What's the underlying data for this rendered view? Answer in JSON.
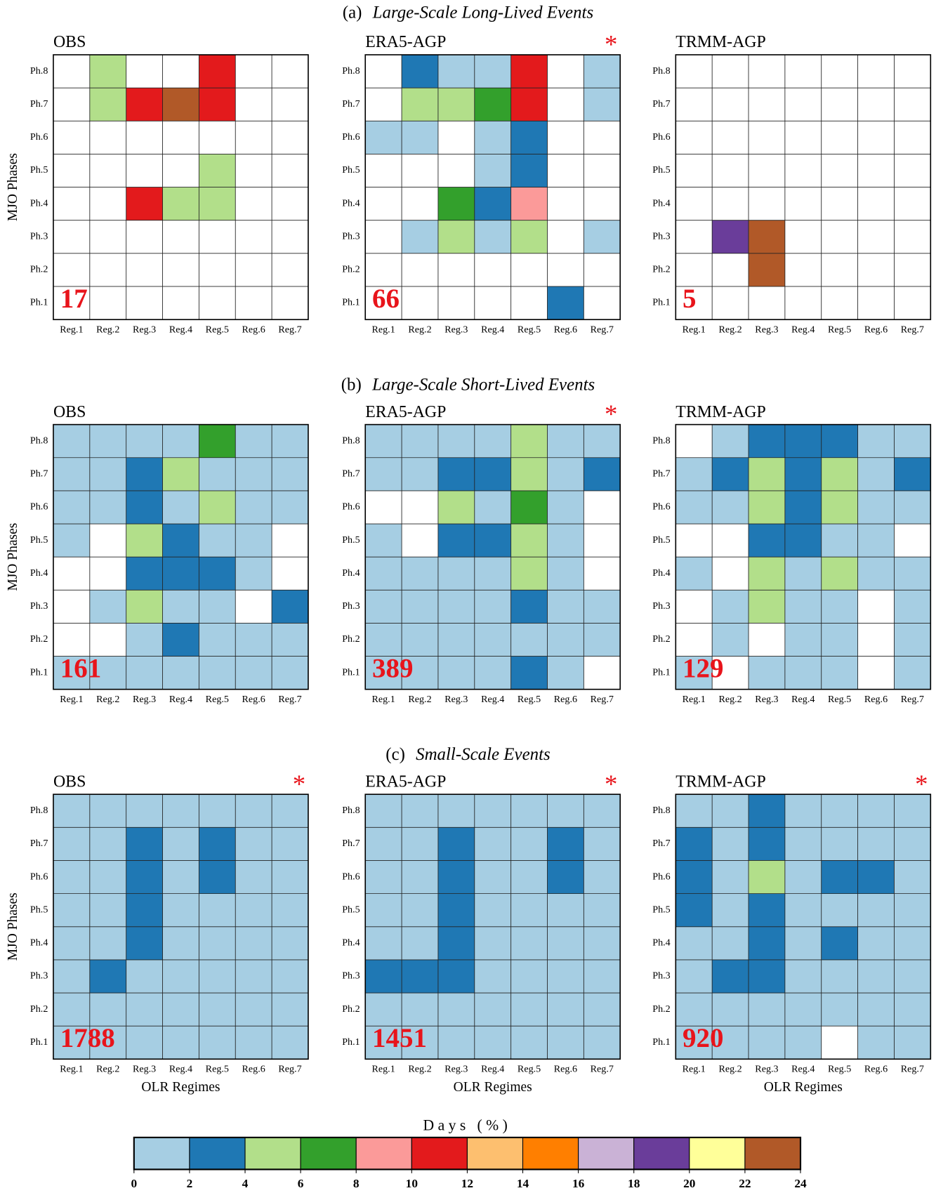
{
  "sections": [
    {
      "label": "(a)",
      "title": "Large-Scale Long-Lived Events"
    },
    {
      "label": "(b)",
      "title": "Large-Scale Short-Lived Events"
    },
    {
      "label": "(c)",
      "title": "Small-Scale Events"
    }
  ],
  "chart_data": [
    {
      "type": "heatmap",
      "title": "OBS",
      "annotation": "17",
      "ylabel": "MJO Phases",
      "x_categories": [
        "Reg.1",
        "Reg.2",
        "Reg.3",
        "Reg.4",
        "Reg.5",
        "Reg.6",
        "Reg.7"
      ],
      "y_categories": [
        "Ph.8",
        "Ph.7",
        "Ph.6",
        "Ph.5",
        "Ph.4",
        "Ph.3",
        "Ph.2",
        "Ph.1"
      ],
      "values": [
        [
          null,
          5,
          null,
          null,
          11,
          null,
          null
        ],
        [
          null,
          5,
          11,
          23,
          11,
          null,
          null
        ],
        [
          null,
          null,
          null,
          null,
          null,
          null,
          null
        ],
        [
          null,
          null,
          null,
          null,
          5,
          null,
          null
        ],
        [
          null,
          null,
          11,
          5,
          5,
          null,
          null
        ],
        [
          null,
          null,
          null,
          null,
          null,
          null,
          null
        ],
        [
          null,
          null,
          null,
          null,
          null,
          null,
          null
        ],
        [
          null,
          null,
          null,
          null,
          null,
          null,
          null
        ]
      ]
    },
    {
      "type": "heatmap",
      "title": "ERA5-AGP",
      "annotation": "66",
      "marker": "*",
      "x_categories": [
        "Reg.1",
        "Reg.2",
        "Reg.3",
        "Reg.4",
        "Reg.5",
        "Reg.6",
        "Reg.7"
      ],
      "y_categories": [
        "Ph.8",
        "Ph.7",
        "Ph.6",
        "Ph.5",
        "Ph.4",
        "Ph.3",
        "Ph.2",
        "Ph.1"
      ],
      "values": [
        [
          null,
          3,
          1,
          1,
          11,
          null,
          1
        ],
        [
          null,
          5,
          5,
          7,
          11,
          null,
          1
        ],
        [
          1,
          1,
          null,
          1,
          3,
          null,
          null
        ],
        [
          null,
          null,
          null,
          1,
          3,
          null,
          null
        ],
        [
          null,
          null,
          7,
          3,
          9,
          null,
          null
        ],
        [
          null,
          1,
          5,
          1,
          5,
          null,
          1
        ],
        [
          null,
          null,
          null,
          null,
          null,
          null,
          null
        ],
        [
          null,
          null,
          null,
          null,
          null,
          3,
          null
        ]
      ]
    },
    {
      "type": "heatmap",
      "title": "TRMM-AGP",
      "annotation": "5",
      "x_categories": [
        "Reg.1",
        "Reg.2",
        "Reg.3",
        "Reg.4",
        "Reg.5",
        "Reg.6",
        "Reg.7"
      ],
      "y_categories": [
        "Ph.8",
        "Ph.7",
        "Ph.6",
        "Ph.5",
        "Ph.4",
        "Ph.3",
        "Ph.2",
        "Ph.1"
      ],
      "values": [
        [
          null,
          null,
          null,
          null,
          null,
          null,
          null
        ],
        [
          null,
          null,
          null,
          null,
          null,
          null,
          null
        ],
        [
          null,
          null,
          null,
          null,
          null,
          null,
          null
        ],
        [
          null,
          null,
          null,
          null,
          null,
          null,
          null
        ],
        [
          null,
          null,
          null,
          null,
          null,
          null,
          null
        ],
        [
          null,
          19,
          23,
          null,
          null,
          null,
          null
        ],
        [
          null,
          null,
          23,
          null,
          null,
          null,
          null
        ],
        [
          null,
          null,
          null,
          null,
          null,
          null,
          null
        ]
      ]
    },
    {
      "type": "heatmap",
      "title": "OBS",
      "annotation": "161",
      "ylabel": "MJO Phases",
      "x_categories": [
        "Reg.1",
        "Reg.2",
        "Reg.3",
        "Reg.4",
        "Reg.5",
        "Reg.6",
        "Reg.7"
      ],
      "y_categories": [
        "Ph.8",
        "Ph.7",
        "Ph.6",
        "Ph.5",
        "Ph.4",
        "Ph.3",
        "Ph.2",
        "Ph.1"
      ],
      "values": [
        [
          1,
          1,
          1,
          1,
          7,
          1,
          1
        ],
        [
          1,
          1,
          3,
          5,
          1,
          1,
          1
        ],
        [
          1,
          1,
          3,
          1,
          5,
          1,
          1
        ],
        [
          1,
          null,
          5,
          3,
          1,
          1,
          null
        ],
        [
          null,
          null,
          3,
          3,
          3,
          1,
          null
        ],
        [
          null,
          1,
          5,
          1,
          1,
          null,
          3
        ],
        [
          null,
          null,
          1,
          3,
          1,
          1,
          1
        ],
        [
          1,
          1,
          1,
          1,
          1,
          1,
          1
        ]
      ]
    },
    {
      "type": "heatmap",
      "title": "ERA5-AGP",
      "annotation": "389",
      "marker": "*",
      "x_categories": [
        "Reg.1",
        "Reg.2",
        "Reg.3",
        "Reg.4",
        "Reg.5",
        "Reg.6",
        "Reg.7"
      ],
      "y_categories": [
        "Ph.8",
        "Ph.7",
        "Ph.6",
        "Ph.5",
        "Ph.4",
        "Ph.3",
        "Ph.2",
        "Ph.1"
      ],
      "values": [
        [
          1,
          1,
          1,
          1,
          5,
          1,
          1
        ],
        [
          1,
          1,
          3,
          3,
          5,
          1,
          3
        ],
        [
          null,
          null,
          5,
          1,
          7,
          1,
          null
        ],
        [
          1,
          null,
          3,
          3,
          5,
          1,
          null
        ],
        [
          1,
          1,
          1,
          1,
          5,
          1,
          null
        ],
        [
          1,
          1,
          1,
          1,
          3,
          1,
          1
        ],
        [
          1,
          1,
          1,
          1,
          1,
          1,
          1
        ],
        [
          1,
          1,
          1,
          1,
          3,
          1,
          null
        ]
      ]
    },
    {
      "type": "heatmap",
      "title": "TRMM-AGP",
      "annotation": "129",
      "x_categories": [
        "Reg.1",
        "Reg.2",
        "Reg.3",
        "Reg.4",
        "Reg.5",
        "Reg.6",
        "Reg.7"
      ],
      "y_categories": [
        "Ph.8",
        "Ph.7",
        "Ph.6",
        "Ph.5",
        "Ph.4",
        "Ph.3",
        "Ph.2",
        "Ph.1"
      ],
      "values": [
        [
          null,
          1,
          3,
          3,
          3,
          1,
          1
        ],
        [
          1,
          3,
          5,
          3,
          5,
          1,
          3
        ],
        [
          1,
          1,
          5,
          3,
          5,
          1,
          1
        ],
        [
          null,
          null,
          3,
          3,
          1,
          1,
          null
        ],
        [
          1,
          null,
          5,
          1,
          5,
          1,
          1
        ],
        [
          null,
          1,
          5,
          1,
          1,
          null,
          1
        ],
        [
          null,
          1,
          null,
          1,
          1,
          null,
          1
        ],
        [
          1,
          null,
          1,
          1,
          1,
          null,
          1
        ]
      ]
    },
    {
      "type": "heatmap",
      "title": "OBS",
      "annotation": "1788",
      "marker": "*",
      "ylabel": "MJO Phases",
      "xlabel": "OLR Regimes",
      "x_categories": [
        "Reg.1",
        "Reg.2",
        "Reg.3",
        "Reg.4",
        "Reg.5",
        "Reg.6",
        "Reg.7"
      ],
      "y_categories": [
        "Ph.8",
        "Ph.7",
        "Ph.6",
        "Ph.5",
        "Ph.4",
        "Ph.3",
        "Ph.2",
        "Ph.1"
      ],
      "values": [
        [
          1,
          1,
          1,
          1,
          1,
          1,
          1
        ],
        [
          1,
          1,
          3,
          1,
          3,
          1,
          1
        ],
        [
          1,
          1,
          3,
          1,
          3,
          1,
          1
        ],
        [
          1,
          1,
          3,
          1,
          1,
          1,
          1
        ],
        [
          1,
          1,
          3,
          1,
          1,
          1,
          1
        ],
        [
          1,
          3,
          1,
          1,
          1,
          1,
          1
        ],
        [
          1,
          1,
          1,
          1,
          1,
          1,
          1
        ],
        [
          1,
          1,
          1,
          1,
          1,
          1,
          1
        ]
      ]
    },
    {
      "type": "heatmap",
      "title": "ERA5-AGP",
      "annotation": "1451",
      "marker": "*",
      "xlabel": "OLR Regimes",
      "x_categories": [
        "Reg.1",
        "Reg.2",
        "Reg.3",
        "Reg.4",
        "Reg.5",
        "Reg.6",
        "Reg.7"
      ],
      "y_categories": [
        "Ph.8",
        "Ph.7",
        "Ph.6",
        "Ph.5",
        "Ph.4",
        "Ph.3",
        "Ph.2",
        "Ph.1"
      ],
      "values": [
        [
          1,
          1,
          1,
          1,
          1,
          1,
          1
        ],
        [
          1,
          1,
          3,
          1,
          1,
          3,
          1
        ],
        [
          1,
          1,
          3,
          1,
          1,
          3,
          1
        ],
        [
          1,
          1,
          3,
          1,
          1,
          1,
          1
        ],
        [
          1,
          1,
          3,
          1,
          1,
          1,
          1
        ],
        [
          3,
          3,
          3,
          1,
          1,
          1,
          1
        ],
        [
          1,
          1,
          1,
          1,
          1,
          1,
          1
        ],
        [
          1,
          1,
          1,
          1,
          1,
          1,
          1
        ]
      ]
    },
    {
      "type": "heatmap",
      "title": "TRMM-AGP",
      "annotation": "920",
      "marker": "*",
      "xlabel": "OLR Regimes",
      "x_categories": [
        "Reg.1",
        "Reg.2",
        "Reg.3",
        "Reg.4",
        "Reg.5",
        "Reg.6",
        "Reg.7"
      ],
      "y_categories": [
        "Ph.8",
        "Ph.7",
        "Ph.6",
        "Ph.5",
        "Ph.4",
        "Ph.3",
        "Ph.2",
        "Ph.1"
      ],
      "values": [
        [
          1,
          1,
          3,
          1,
          1,
          1,
          1
        ],
        [
          3,
          1,
          3,
          1,
          1,
          1,
          1
        ],
        [
          3,
          1,
          5,
          1,
          3,
          3,
          1
        ],
        [
          3,
          1,
          3,
          1,
          1,
          1,
          1
        ],
        [
          1,
          1,
          3,
          1,
          3,
          1,
          1
        ],
        [
          1,
          3,
          3,
          1,
          1,
          1,
          1
        ],
        [
          1,
          1,
          1,
          1,
          1,
          1,
          1
        ],
        [
          1,
          1,
          1,
          1,
          null,
          1,
          1
        ]
      ]
    }
  ],
  "colorbar": {
    "title": "Days (%)",
    "bounds": [
      0,
      2,
      4,
      6,
      8,
      10,
      12,
      14,
      16,
      18,
      20,
      22,
      24
    ],
    "colors": [
      "#a6cee3",
      "#1f78b4",
      "#b2df8a",
      "#33a02c",
      "#fb9a99",
      "#e31a1c",
      "#fdbf6f",
      "#ff7f00",
      "#cab2d6",
      "#6a3d9a",
      "#ffff99",
      "#b15928"
    ]
  }
}
